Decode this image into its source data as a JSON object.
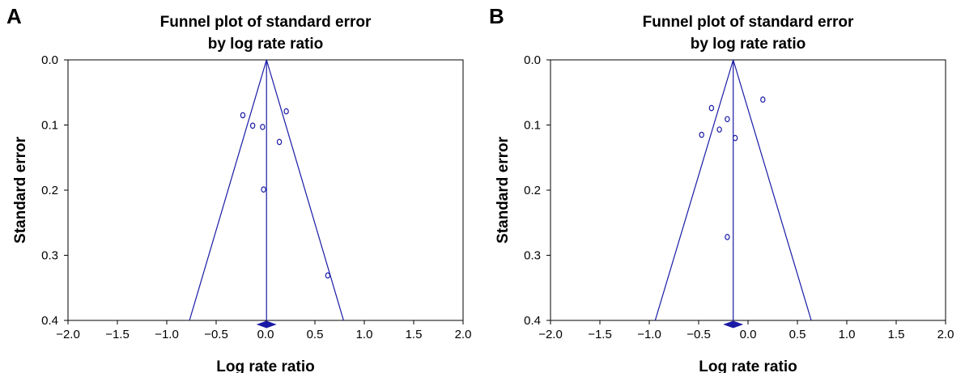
{
  "chart_data": [
    {
      "type": "scatter",
      "panel_label": "A",
      "title_lines": [
        "Funnel plot of standard error",
        "by log rate ratio"
      ],
      "xlabel": "Log rate ratio",
      "ylabel": "Standard error",
      "xlim": [
        -2.0,
        2.0
      ],
      "ylim": [
        0.0,
        0.4
      ],
      "y_inverted": true,
      "x_ticks": [
        "−2.0",
        "−1.5",
        "−1.0",
        "−0.5",
        "0.0",
        "0.5",
        "1.0",
        "1.5",
        "2.0"
      ],
      "x_tick_values": [
        -2.0,
        -1.5,
        -1.0,
        -0.5,
        0.0,
        0.5,
        1.0,
        1.5,
        2.0
      ],
      "y_ticks": [
        "0.0",
        "0.1",
        "0.2",
        "0.3",
        "0.4"
      ],
      "y_tick_values": [
        0.0,
        0.1,
        0.2,
        0.3,
        0.4
      ],
      "summary_effect": 0.01,
      "funnel_bottom": [
        -0.77,
        0.79
      ],
      "points": [
        {
          "x": -0.23,
          "y": 0.085
        },
        {
          "x": -0.13,
          "y": 0.101
        },
        {
          "x": -0.03,
          "y": 0.103
        },
        {
          "x": 0.21,
          "y": 0.079
        },
        {
          "x": 0.14,
          "y": 0.126
        },
        {
          "x": -0.02,
          "y": 0.199
        },
        {
          "x": 0.63,
          "y": 0.331
        }
      ],
      "colors": {
        "line": "#1a1aa6",
        "point": "#1a1aa6",
        "diamond": "#1a1aa6"
      }
    },
    {
      "type": "scatter",
      "panel_label": "B",
      "title_lines": [
        "Funnel plot of standard error",
        "by log rate ratio"
      ],
      "xlabel": "Log rate ratio",
      "ylabel": "Standard error",
      "xlim": [
        -2.0,
        2.0
      ],
      "ylim": [
        0.0,
        0.4
      ],
      "y_inverted": true,
      "x_ticks": [
        "−2.0",
        "−1.5",
        "−1.0",
        "−0.5",
        "0.0",
        "0.5",
        "1.0",
        "1.5",
        "2.0"
      ],
      "x_tick_values": [
        -2.0,
        -1.5,
        -1.0,
        -0.5,
        0.0,
        0.5,
        1.0,
        1.5,
        2.0
      ],
      "y_ticks": [
        "0.0",
        "0.1",
        "0.2",
        "0.3",
        "0.4"
      ],
      "y_tick_values": [
        0.0,
        0.1,
        0.2,
        0.3,
        0.4
      ],
      "summary_effect": -0.15,
      "funnel_bottom": [
        -0.94,
        0.64
      ],
      "points": [
        {
          "x": -0.37,
          "y": 0.074
        },
        {
          "x": 0.15,
          "y": 0.061
        },
        {
          "x": -0.21,
          "y": 0.091
        },
        {
          "x": -0.29,
          "y": 0.107
        },
        {
          "x": -0.47,
          "y": 0.115
        },
        {
          "x": -0.13,
          "y": 0.12
        },
        {
          "x": -0.21,
          "y": 0.272
        }
      ],
      "colors": {
        "line": "#1a1aa6",
        "point": "#1a1aa6",
        "diamond": "#1a1aa6"
      }
    }
  ]
}
